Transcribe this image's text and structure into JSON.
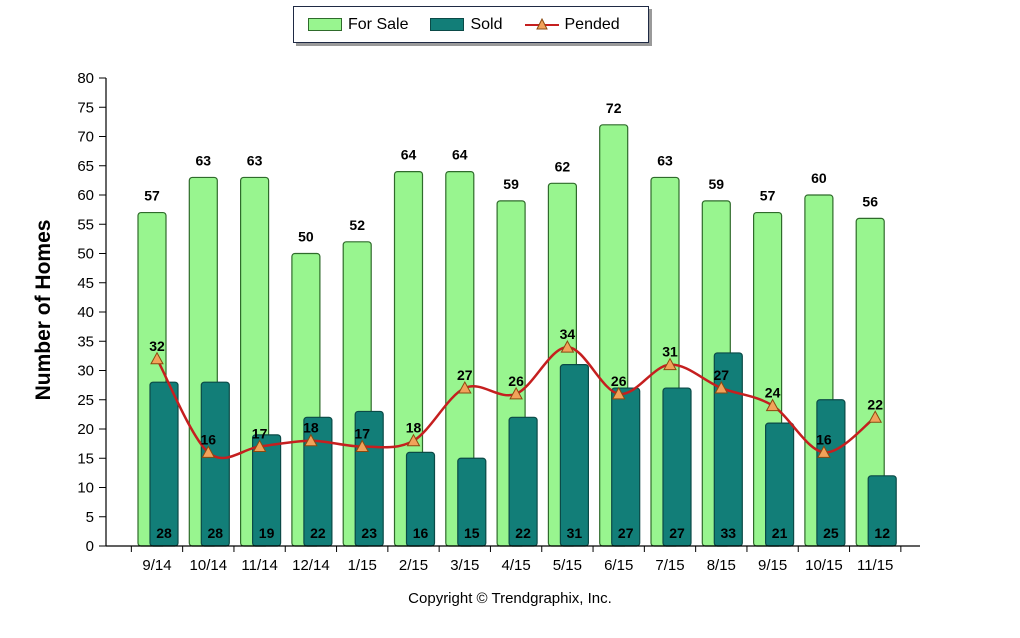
{
  "legend": {
    "for_sale": "For Sale",
    "sold": "Sold",
    "pended": "Pended"
  },
  "copyright": "Copyright © Trendgraphix, Inc.",
  "colors": {
    "for_sale": "#98f58f",
    "sold": "#127e78",
    "pended": "#c51f1f",
    "marker": "#f2a25a"
  },
  "chart_data": {
    "type": "bar",
    "title": "",
    "xlabel": "",
    "ylabel": "Number of Homes",
    "ylim": [
      0,
      80
    ],
    "yticks": [
      0,
      5,
      10,
      15,
      20,
      25,
      30,
      35,
      40,
      45,
      50,
      55,
      60,
      65,
      70,
      75,
      80
    ],
    "categories": [
      "9/14",
      "10/14",
      "11/14",
      "12/14",
      "1/15",
      "2/15",
      "3/15",
      "4/15",
      "5/15",
      "6/15",
      "7/15",
      "8/15",
      "9/15",
      "10/15",
      "11/15"
    ],
    "series": [
      {
        "name": "For Sale",
        "type": "bar",
        "values": [
          57,
          63,
          63,
          50,
          52,
          64,
          64,
          59,
          62,
          72,
          63,
          59,
          57,
          60,
          56
        ]
      },
      {
        "name": "Sold",
        "type": "bar",
        "values": [
          28,
          28,
          19,
          22,
          23,
          16,
          15,
          22,
          31,
          27,
          27,
          33,
          21,
          25,
          12
        ]
      },
      {
        "name": "Pended",
        "type": "line",
        "values": [
          32,
          16,
          17,
          18,
          17,
          18,
          27,
          26,
          34,
          26,
          31,
          27,
          24,
          16,
          22
        ]
      }
    ],
    "legend_position": "top",
    "grid": false
  }
}
